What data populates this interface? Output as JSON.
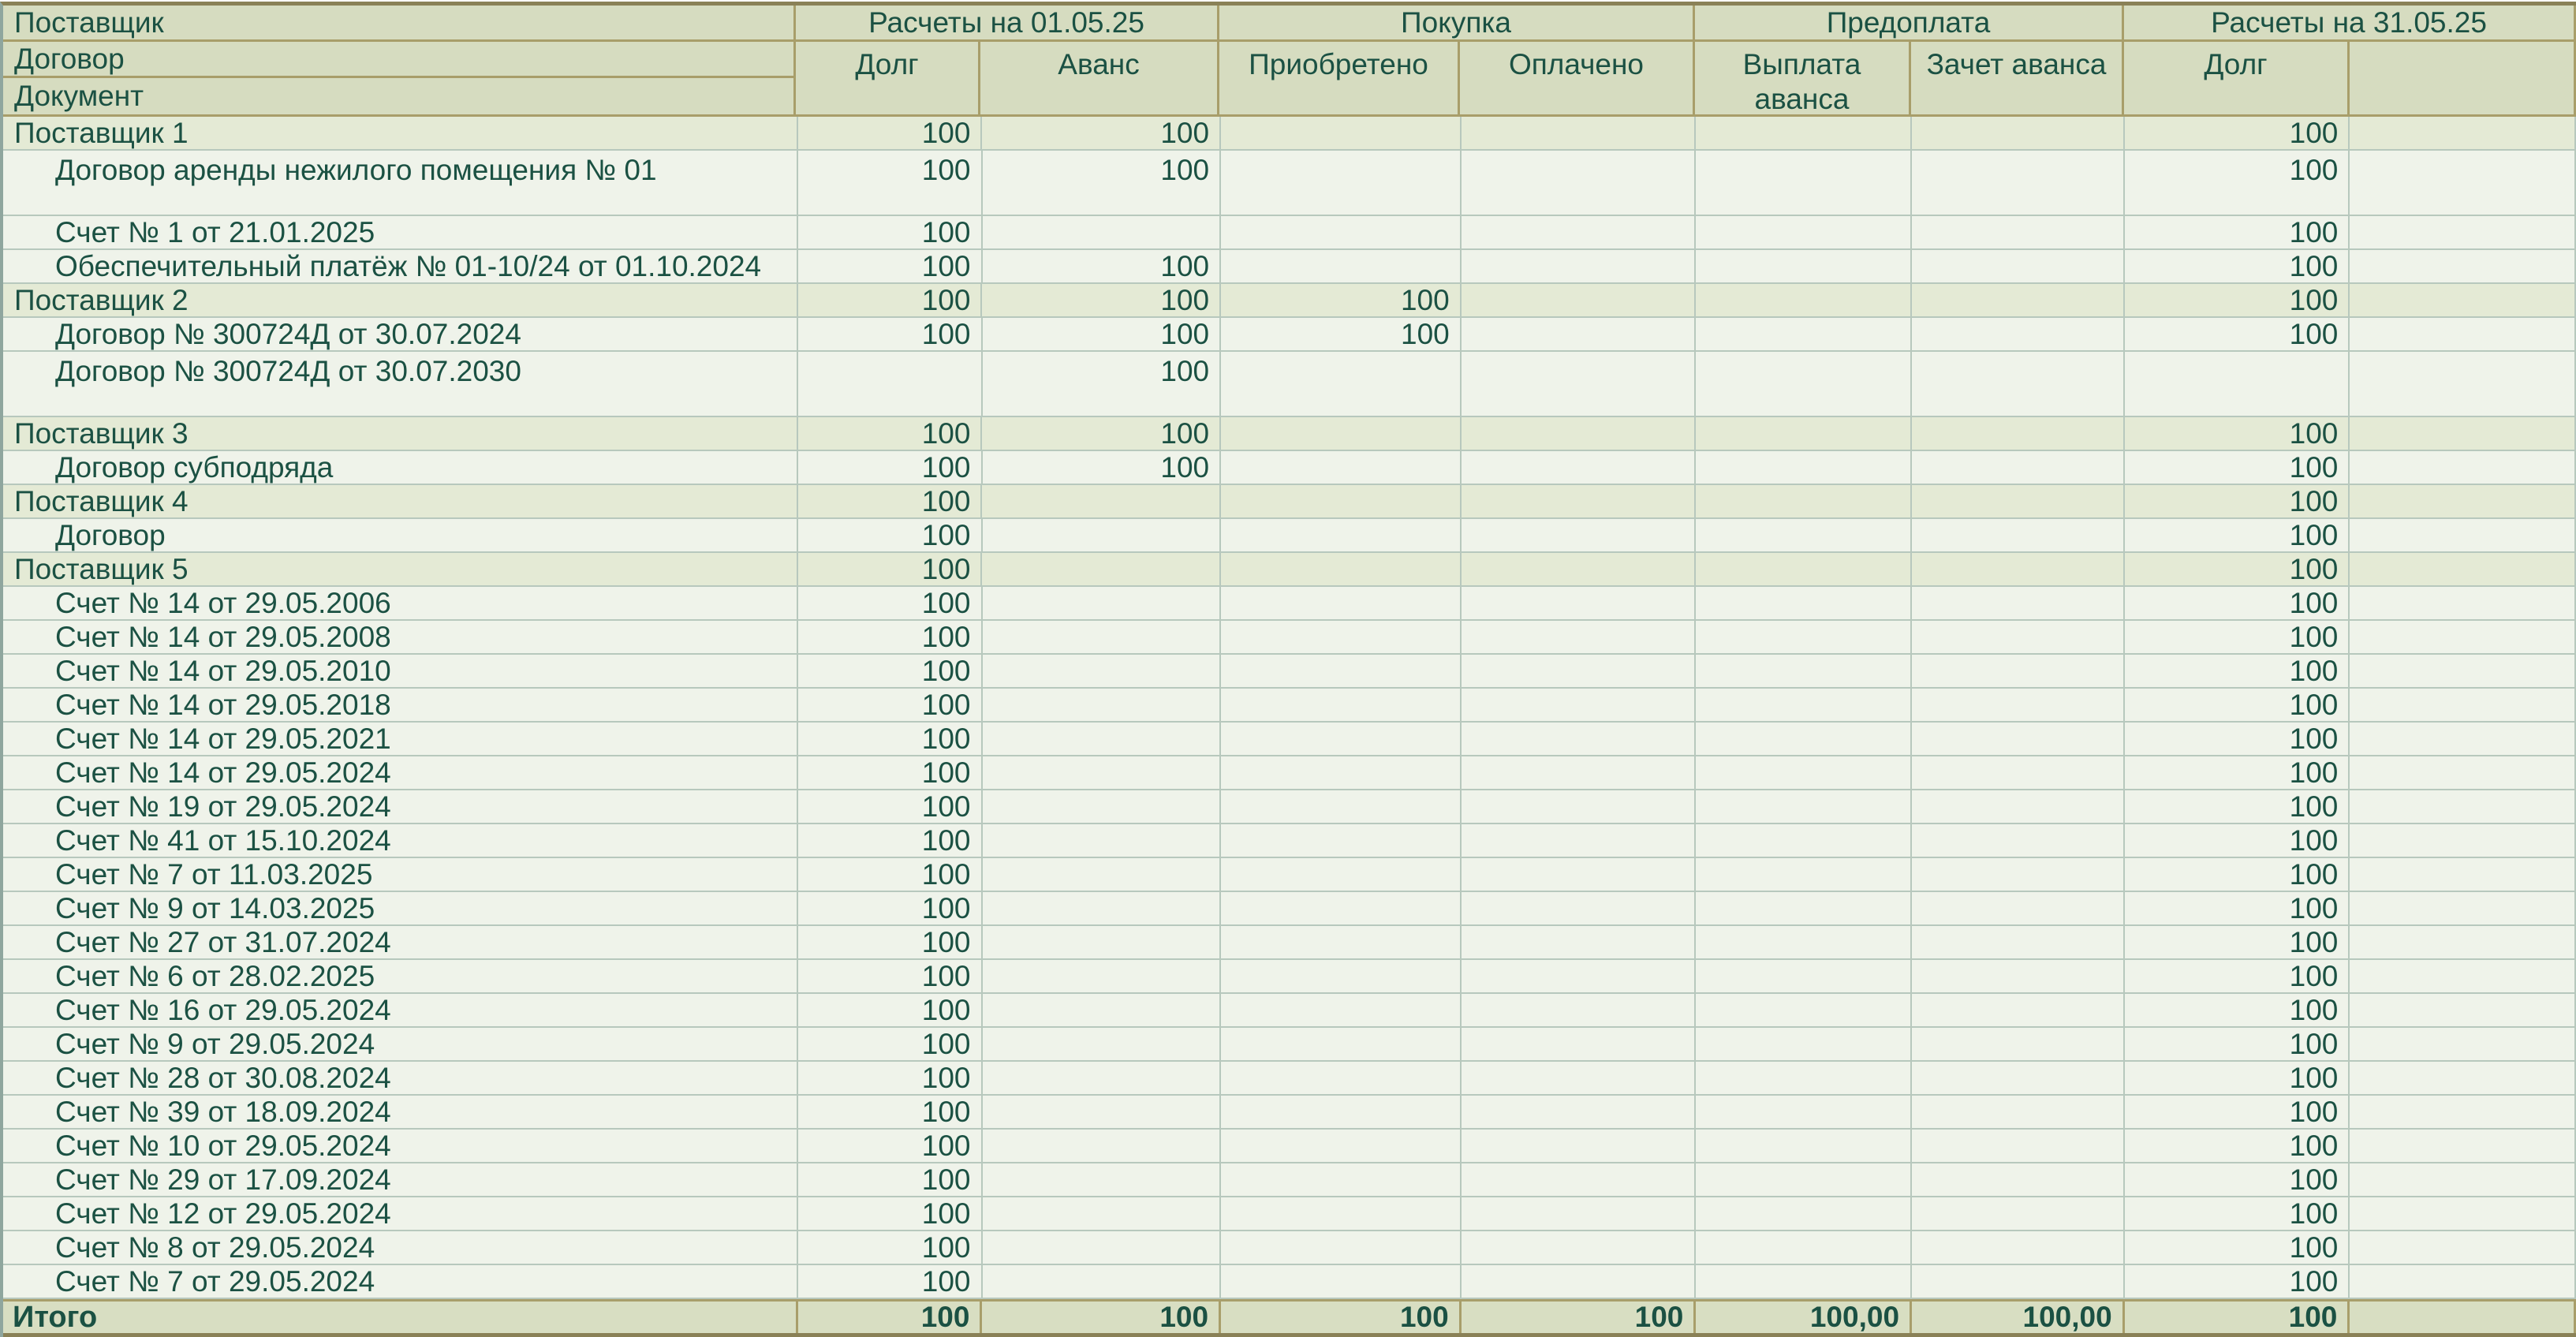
{
  "report": {
    "header": {
      "col1_rows": [
        "Поставщик",
        "Договор",
        "Документ"
      ],
      "groups": [
        {
          "label": "Расчеты на 01.05.25",
          "columns": [
            "Долг",
            "Аванс"
          ]
        },
        {
          "label": "Покупка",
          "columns": [
            "Приобретено",
            "Оплачено"
          ]
        },
        {
          "label": "Предоплата",
          "columns": [
            "Выплата аванса",
            "Зачет аванса"
          ]
        },
        {
          "label": "Расчеты на 31.05.25",
          "columns": [
            "Долг",
            ""
          ]
        }
      ]
    },
    "rows": [
      {
        "type": "supplier",
        "tall": false,
        "label": "Поставщик 1",
        "values": [
          "100",
          "100",
          "",
          "",
          "",
          "",
          "100"
        ]
      },
      {
        "type": "document",
        "tall": true,
        "label": "Договор аренды нежилого помещения № 01",
        "values": [
          "100",
          "100",
          "",
          "",
          "",
          "",
          "100"
        ]
      },
      {
        "type": "document",
        "tall": false,
        "label": "Счет № 1 от 21.01.2025",
        "values": [
          "100",
          "",
          "",
          "",
          "",
          "",
          "100"
        ]
      },
      {
        "type": "document",
        "tall": false,
        "label": "Обеспечительный платёж № 01-10/24 от 01.10.2024",
        "values": [
          "100",
          "100",
          "",
          "",
          "",
          "",
          "100"
        ]
      },
      {
        "type": "supplier",
        "tall": false,
        "label": "Поставщик 2",
        "values": [
          "100",
          "100",
          "100",
          "",
          "",
          "",
          "100"
        ]
      },
      {
        "type": "document",
        "tall": false,
        "label": "Договор № 300724Д от 30.07.2024",
        "values": [
          "100",
          "100",
          "100",
          "",
          "",
          "",
          "100"
        ]
      },
      {
        "type": "document",
        "tall": true,
        "label": "Договор № 300724Д от 30.07.2030",
        "values": [
          "",
          "100",
          "",
          "",
          "",
          "",
          ""
        ]
      },
      {
        "type": "supplier",
        "tall": false,
        "label": "Поставщик 3",
        "values": [
          "100",
          "100",
          "",
          "",
          "",
          "",
          "100"
        ]
      },
      {
        "type": "document",
        "tall": false,
        "label": "Договор субподряда",
        "values": [
          "100",
          "100",
          "",
          "",
          "",
          "",
          "100"
        ]
      },
      {
        "type": "supplier",
        "tall": false,
        "label": "Поставщик 4",
        "values": [
          "100",
          "",
          "",
          "",
          "",
          "",
          "100"
        ]
      },
      {
        "type": "document",
        "tall": false,
        "label": "Договор",
        "values": [
          "100",
          "",
          "",
          "",
          "",
          "",
          "100"
        ]
      },
      {
        "type": "supplier",
        "tall": false,
        "label": "Поставщик 5",
        "values": [
          "100",
          "",
          "",
          "",
          "",
          "",
          "100"
        ]
      },
      {
        "type": "document",
        "tall": false,
        "label": "Счет № 14 от 29.05.2006",
        "values": [
          "100",
          "",
          "",
          "",
          "",
          "",
          "100"
        ]
      },
      {
        "type": "document",
        "tall": false,
        "label": "Счет № 14 от 29.05.2008",
        "values": [
          "100",
          "",
          "",
          "",
          "",
          "",
          "100"
        ]
      },
      {
        "type": "document",
        "tall": false,
        "label": "Счет № 14 от 29.05.2010",
        "values": [
          "100",
          "",
          "",
          "",
          "",
          "",
          "100"
        ]
      },
      {
        "type": "document",
        "tall": false,
        "label": "Счет № 14 от 29.05.2018",
        "values": [
          "100",
          "",
          "",
          "",
          "",
          "",
          "100"
        ]
      },
      {
        "type": "document",
        "tall": false,
        "label": "Счет № 14 от 29.05.2021",
        "values": [
          "100",
          "",
          "",
          "",
          "",
          "",
          "100"
        ]
      },
      {
        "type": "document",
        "tall": false,
        "label": "Счет № 14 от 29.05.2024",
        "values": [
          "100",
          "",
          "",
          "",
          "",
          "",
          "100"
        ]
      },
      {
        "type": "document",
        "tall": false,
        "label": "Счет № 19 от 29.05.2024",
        "values": [
          "100",
          "",
          "",
          "",
          "",
          "",
          "100"
        ]
      },
      {
        "type": "document",
        "tall": false,
        "label": "Счет № 41 от 15.10.2024",
        "values": [
          "100",
          "",
          "",
          "",
          "",
          "",
          "100"
        ]
      },
      {
        "type": "document",
        "tall": false,
        "label": "Счет № 7 от 11.03.2025",
        "values": [
          "100",
          "",
          "",
          "",
          "",
          "",
          "100"
        ]
      },
      {
        "type": "document",
        "tall": false,
        "label": "Счет № 9 от 14.03.2025",
        "values": [
          "100",
          "",
          "",
          "",
          "",
          "",
          "100"
        ]
      },
      {
        "type": "document",
        "tall": false,
        "label": "Счет № 27 от 31.07.2024",
        "values": [
          "100",
          "",
          "",
          "",
          "",
          "",
          "100"
        ]
      },
      {
        "type": "document",
        "tall": false,
        "label": "Счет № 6 от 28.02.2025",
        "values": [
          "100",
          "",
          "",
          "",
          "",
          "",
          "100"
        ]
      },
      {
        "type": "document",
        "tall": false,
        "label": "Счет № 16 от 29.05.2024",
        "values": [
          "100",
          "",
          "",
          "",
          "",
          "",
          "100"
        ]
      },
      {
        "type": "document",
        "tall": false,
        "label": "Счет № 9 от 29.05.2024",
        "values": [
          "100",
          "",
          "",
          "",
          "",
          "",
          "100"
        ]
      },
      {
        "type": "document",
        "tall": false,
        "label": "Счет № 28 от 30.08.2024",
        "values": [
          "100",
          "",
          "",
          "",
          "",
          "",
          "100"
        ]
      },
      {
        "type": "document",
        "tall": false,
        "label": "Счет № 39 от 18.09.2024",
        "values": [
          "100",
          "",
          "",
          "",
          "",
          "",
          "100"
        ]
      },
      {
        "type": "document",
        "tall": false,
        "label": "Счет № 10 от 29.05.2024",
        "values": [
          "100",
          "",
          "",
          "",
          "",
          "",
          "100"
        ]
      },
      {
        "type": "document",
        "tall": false,
        "label": "Счет № 29 от 17.09.2024",
        "values": [
          "100",
          "",
          "",
          "",
          "",
          "",
          "100"
        ]
      },
      {
        "type": "document",
        "tall": false,
        "label": "Счет № 12 от 29.05.2024",
        "values": [
          "100",
          "",
          "",
          "",
          "",
          "",
          "100"
        ]
      },
      {
        "type": "document",
        "tall": false,
        "label": "Счет № 8 от 29.05.2024",
        "values": [
          "100",
          "",
          "",
          "",
          "",
          "",
          "100"
        ]
      },
      {
        "type": "document",
        "tall": false,
        "label": "Счет № 7 от 29.05.2024",
        "values": [
          "100",
          "",
          "",
          "",
          "",
          "",
          "100"
        ]
      }
    ],
    "total": {
      "label": "Итого",
      "values": [
        "100",
        "100",
        "100",
        "100",
        "100,00",
        "100,00",
        "100"
      ]
    },
    "colors": {
      "header_bg": "#d6dcc0",
      "supplier_row_bg": "#e4ead5",
      "document_row_bg": "#eff3ea",
      "total_row_bg": "#d8dec2",
      "text": "#1b5143",
      "olive_border": "#a89e6a",
      "grid_border": "#b7c8bd",
      "outer_border": "#8a8157"
    }
  }
}
